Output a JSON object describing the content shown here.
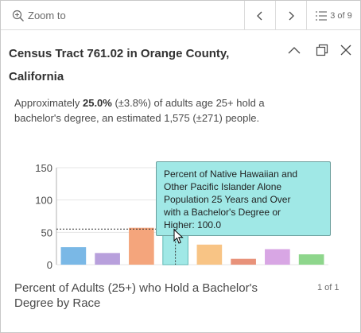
{
  "toolbar": {
    "zoom_label": "Zoom to",
    "count_label": "3 of 9"
  },
  "header": {
    "title_line1": "Census Tract 761.02 in Orange County,",
    "title_line2": "California"
  },
  "description": {
    "prefix": "Approximately ",
    "highlight": "25.0%",
    "suffix_line1": " (±3.8%) of adults age 25+ hold a",
    "line2": "bachelor's degree, an estimated 1,575 (±271) people."
  },
  "chart_data": {
    "type": "bar",
    "title": "Percent of Adults (25+) who Hold a Bachelor's Degree by Race",
    "ylim": [
      0,
      150
    ],
    "yticks": [
      "150",
      "100",
      "50",
      "0"
    ],
    "average_line": 55,
    "values": [
      27,
      18,
      57,
      100,
      31,
      9,
      24,
      16
    ],
    "colors": [
      "#7ab8e6",
      "#b8a0dc",
      "#f4a57c",
      "#a0e8e6",
      "#f8c485",
      "#e8927a",
      "#d8a6e4",
      "#8ed68c"
    ]
  },
  "tooltip": {
    "line1": "Percent of Native Hawaiian and",
    "line2": "Other Pacific Islander Alone",
    "line3": "Population 25 Years and Over",
    "line4": "with a Bachelor's Degree or",
    "line5": "Higher: 100.0"
  },
  "chart_footer": {
    "title_line1": "Percent of Adults (25+) who Hold a Bachelor's",
    "title_line2": "Degree by Race",
    "pager": "1 of 1"
  }
}
